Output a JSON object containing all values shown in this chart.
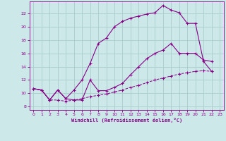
{
  "background_color": "#cce8e8",
  "grid_color": "#aacccc",
  "line_color": "#880088",
  "xlabel": "Windchill (Refroidissement éolien,°C)",
  "xlim": [
    -0.5,
    23.5
  ],
  "ylim": [
    7.5,
    23.8
  ],
  "yticks": [
    8,
    10,
    12,
    14,
    16,
    18,
    20,
    22
  ],
  "xticks": [
    0,
    1,
    2,
    3,
    4,
    5,
    6,
    7,
    8,
    9,
    10,
    11,
    12,
    13,
    14,
    15,
    16,
    17,
    18,
    19,
    20,
    21,
    22,
    23
  ],
  "curve1_x": [
    0,
    1,
    2,
    3,
    4,
    5,
    6,
    7,
    8,
    9,
    10,
    11,
    12,
    13,
    14,
    15,
    16,
    17,
    18,
    19,
    20,
    21,
    22
  ],
  "curve1_y": [
    10.7,
    10.5,
    9.0,
    10.5,
    9.2,
    10.5,
    12.0,
    14.5,
    17.5,
    18.3,
    20.0,
    20.8,
    21.3,
    21.6,
    21.9,
    22.1,
    23.2,
    22.5,
    22.1,
    20.5,
    20.5,
    14.8,
    13.3
  ],
  "curve2_x": [
    0,
    1,
    2,
    3,
    4,
    5,
    6,
    7,
    8,
    9,
    10,
    11,
    12,
    13,
    14,
    15,
    16,
    17,
    18,
    19,
    20,
    21,
    22
  ],
  "curve2_y": [
    10.7,
    10.5,
    9.0,
    10.5,
    9.2,
    9.0,
    9.0,
    12.0,
    10.4,
    10.4,
    10.9,
    11.5,
    12.8,
    14.0,
    15.2,
    16.0,
    16.5,
    17.5,
    16.0,
    16.0,
    16.0,
    15.0,
    14.8
  ],
  "curve3_x": [
    0,
    1,
    2,
    3,
    4,
    5,
    6,
    7,
    8,
    9,
    10,
    11,
    12,
    13,
    14,
    15,
    16,
    17,
    18,
    19,
    20,
    21,
    22
  ],
  "curve3_y": [
    10.7,
    10.5,
    9.0,
    9.0,
    8.8,
    9.0,
    9.2,
    9.5,
    9.7,
    9.9,
    10.2,
    10.5,
    10.9,
    11.2,
    11.6,
    12.0,
    12.3,
    12.6,
    12.9,
    13.1,
    13.3,
    13.4,
    13.3
  ]
}
